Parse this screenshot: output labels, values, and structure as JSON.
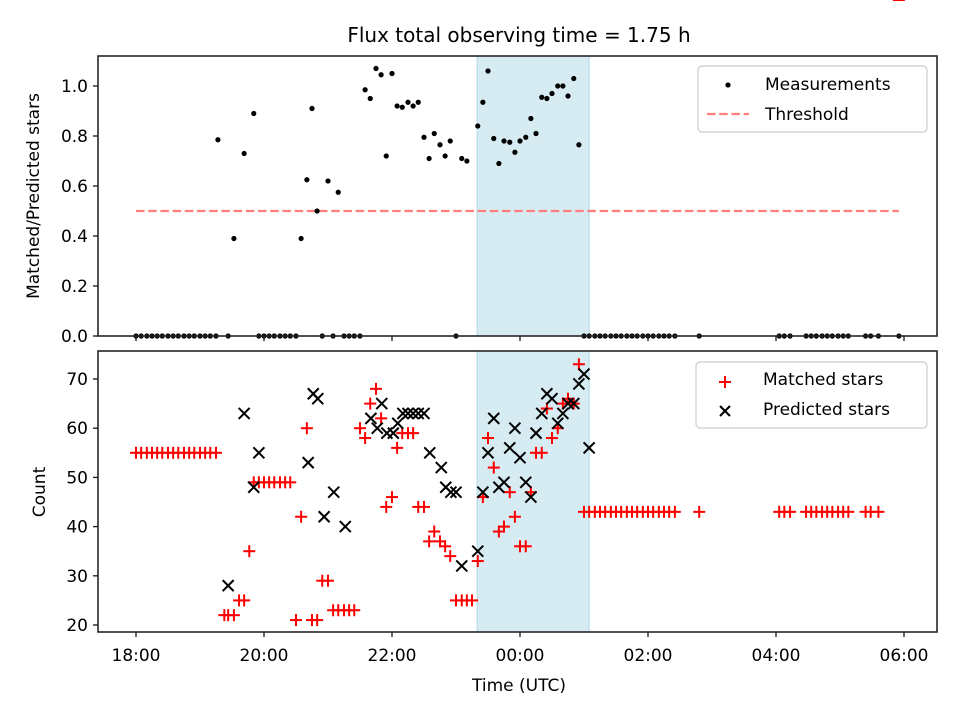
{
  "chart_data": [
    {
      "type": "scatter",
      "panel": "top",
      "title": "Flux total observing time = 1.75 h",
      "xlabel": "",
      "ylabel": "Matched/Predicted stars",
      "ylim": [
        0,
        1.12
      ],
      "xlim_hours_from_1800": [
        -0.6,
        12.55
      ],
      "yticks": [
        0.0,
        0.2,
        0.4,
        0.6,
        0.8,
        1.0
      ],
      "ytick_labels": [
        "0.0",
        "0.2",
        "0.4",
        "0.6",
        "0.8",
        "1.0"
      ],
      "shaded_interval_hours": [
        5.33,
        7.08
      ],
      "legend": {
        "position": "top-right",
        "entries": [
          "Measurements",
          "Threshold"
        ]
      },
      "series": [
        {
          "name": "Measurements",
          "color": "#000000",
          "x_hours": [
            0,
            0.08,
            0.17,
            0.25,
            0.33,
            0.41,
            0.5,
            0.58,
            0.66,
            0.75,
            0.83,
            0.91,
            1.0,
            1.08,
            1.16,
            1.25,
            1.28,
            1.44,
            1.53,
            1.69,
            1.84,
            1.92,
            2.0,
            2.08,
            2.16,
            2.25,
            2.33,
            2.41,
            2.5,
            2.58,
            2.67,
            2.75,
            2.83,
            2.91,
            3.0,
            3.08,
            3.16,
            3.25,
            3.33,
            3.41,
            3.5,
            3.58,
            3.66,
            3.75,
            3.83,
            3.91,
            4.0,
            4.08,
            4.16,
            4.25,
            4.33,
            4.41,
            4.5,
            4.58,
            4.66,
            4.75,
            4.83,
            4.91,
            5.0,
            5.09,
            5.17,
            5.34,
            5.42,
            5.5,
            5.59,
            5.67,
            5.75,
            5.84,
            5.92,
            6.0,
            6.09,
            6.17,
            6.25,
            6.34,
            6.42,
            6.5,
            6.59,
            6.67,
            6.75,
            6.84,
            6.92,
            7.0,
            7.08,
            7.17,
            7.25,
            7.33,
            7.42,
            7.5,
            7.58,
            7.67,
            7.75,
            7.83,
            7.92,
            8.0,
            8.08,
            8.17,
            8.25,
            8.33,
            8.42,
            8.8,
            10.05,
            10.13,
            10.22,
            10.47,
            10.55,
            10.63,
            10.72,
            10.8,
            10.88,
            10.97,
            11.05,
            11.13,
            11.4,
            11.48,
            11.6,
            11.92
          ],
          "y": [
            0,
            0,
            0,
            0,
            0,
            0,
            0,
            0,
            0,
            0,
            0,
            0,
            0,
            0,
            0,
            0,
            0.785,
            0,
            0.39,
            0.73,
            0.89,
            0,
            0,
            0,
            0,
            0,
            0,
            0,
            0,
            0.39,
            0.625,
            0.91,
            0.5,
            0,
            0.62,
            0,
            0.575,
            0,
            0,
            0,
            0,
            0.985,
            0.95,
            1.07,
            1.045,
            0.72,
            1.05,
            0.92,
            0.915,
            0.935,
            0.92,
            0.935,
            0.795,
            0.71,
            0.81,
            0.765,
            0.72,
            0.78,
            0,
            0.71,
            0.7,
            0.84,
            0.935,
            1.06,
            0.79,
            0.69,
            0.78,
            0.775,
            0.735,
            0.78,
            0.795,
            0.87,
            0.81,
            0.955,
            0.95,
            0.97,
            1.0,
            1.0,
            0.96,
            1.03,
            0.765,
            0,
            0,
            0,
            0,
            0,
            0,
            0,
            0,
            0,
            0,
            0,
            0,
            0,
            0,
            0,
            0,
            0,
            0,
            0,
            0,
            0,
            0,
            0,
            0,
            0,
            0,
            0,
            0,
            0,
            0,
            0,
            0,
            0,
            0,
            0
          ]
        },
        {
          "name": "Threshold",
          "color": "#ff7f7f",
          "style": "dashed",
          "x_hours": [
            0,
            11.92
          ],
          "y": [
            0.5,
            0.5
          ]
        }
      ]
    },
    {
      "type": "scatter",
      "panel": "bottom",
      "title": "",
      "xlabel": "Time (UTC)",
      "ylabel": "Count",
      "ylim": [
        18.6,
        75.7
      ],
      "yticks": [
        20,
        30,
        40,
        50,
        60,
        70
      ],
      "ytick_labels": [
        "20",
        "30",
        "40",
        "50",
        "60",
        "70"
      ],
      "xticks_hours_from_1800": [
        0,
        2,
        4,
        6,
        8,
        10,
        12
      ],
      "xtick_labels": [
        "18:00",
        "20:00",
        "22:00",
        "00:00",
        "02:00",
        "04:00",
        "06:00"
      ],
      "shaded_interval_hours": [
        5.33,
        7.08
      ],
      "legend": {
        "position": "top-right",
        "entries": [
          "Matched stars",
          "Predicted stars"
        ]
      },
      "series": [
        {
          "name": "Matched stars",
          "color": "#ff0000",
          "marker": "+",
          "x_hours": [
            0,
            0.08,
            0.17,
            0.25,
            0.33,
            0.41,
            0.5,
            0.58,
            0.66,
            0.75,
            0.83,
            0.91,
            1.0,
            1.08,
            1.16,
            1.25,
            1.38,
            1.44,
            1.53,
            1.61,
            1.69,
            1.77,
            1.84,
            1.92,
            2.0,
            2.08,
            2.16,
            2.25,
            2.33,
            2.41,
            2.5,
            2.58,
            2.67,
            2.75,
            2.83,
            2.91,
            3.0,
            3.08,
            3.16,
            3.25,
            3.33,
            3.41,
            3.5,
            3.58,
            3.66,
            3.75,
            3.83,
            3.91,
            4.0,
            4.08,
            4.16,
            4.25,
            4.33,
            4.41,
            4.5,
            4.58,
            4.66,
            4.75,
            4.83,
            4.91,
            5.0,
            5.09,
            5.17,
            5.25,
            5.34,
            5.42,
            5.5,
            5.59,
            5.67,
            5.75,
            5.84,
            5.92,
            6.0,
            6.09,
            6.17,
            6.25,
            6.34,
            6.42,
            6.5,
            6.59,
            6.67,
            6.75,
            6.84,
            6.92,
            7.0,
            7.08,
            7.17,
            7.25,
            7.33,
            7.42,
            7.5,
            7.58,
            7.67,
            7.75,
            7.83,
            7.92,
            8.0,
            8.08,
            8.17,
            8.25,
            8.33,
            8.42,
            8.8,
            10.05,
            10.13,
            10.22,
            10.47,
            10.55,
            10.63,
            10.72,
            10.8,
            10.88,
            10.97,
            11.05,
            11.13,
            11.4,
            11.48,
            11.6,
            11.92
          ],
          "y": [
            55,
            55,
            55,
            55,
            55,
            55,
            55,
            55,
            55,
            55,
            55,
            55,
            55,
            55,
            55,
            55,
            22,
            22,
            22,
            25,
            25,
            35,
            49,
            49,
            49,
            49,
            49,
            49,
            49,
            49,
            21,
            42,
            60,
            21,
            21,
            29,
            29,
            23,
            23,
            23,
            23,
            23,
            60,
            58,
            65,
            68,
            62,
            44,
            46,
            56,
            59,
            59,
            59,
            44,
            44,
            37,
            39,
            37,
            36,
            34,
            25,
            25,
            25,
            25,
            33,
            46,
            58,
            52,
            39,
            40,
            47,
            42,
            36,
            36,
            47,
            55,
            55,
            64,
            58,
            60,
            65,
            66,
            65,
            73,
            43,
            43,
            43,
            43,
            43,
            43,
            43,
            43,
            43,
            43,
            43,
            43,
            43,
            43,
            43,
            43,
            43,
            43,
            43,
            43,
            43,
            43,
            43,
            43,
            43,
            43,
            43,
            43,
            43,
            43,
            43,
            43,
            43,
            43
          ]
        },
        {
          "name": "Predicted stars",
          "color": "#000000",
          "marker": "x",
          "x_hours": [
            1.44,
            1.69,
            1.84,
            1.92,
            2.69,
            2.77,
            2.84,
            2.94,
            3.09,
            3.27,
            3.67,
            3.77,
            3.84,
            3.92,
            4.02,
            4.09,
            4.17,
            4.25,
            4.33,
            4.41,
            4.5,
            4.59,
            4.77,
            4.84,
            4.92,
            5.0,
            5.09,
            5.34,
            5.42,
            5.5,
            5.59,
            5.67,
            5.75,
            5.84,
            5.92,
            6.0,
            6.09,
            6.17,
            6.25,
            6.34,
            6.42,
            6.5,
            6.59,
            6.67,
            6.75,
            6.84,
            6.92,
            7.0,
            7.08
          ],
          "y": [
            28,
            63,
            48,
            55,
            53,
            67,
            66,
            42,
            47,
            40,
            62,
            60,
            65,
            59,
            59,
            61,
            63,
            63,
            63,
            63,
            63,
            55,
            52,
            48,
            47,
            47,
            32,
            35,
            47,
            55,
            62,
            48,
            49,
            56,
            60,
            54,
            49,
            46,
            59,
            63,
            67,
            66,
            61,
            63,
            65,
            65,
            69,
            71,
            56
          ]
        }
      ]
    }
  ]
}
